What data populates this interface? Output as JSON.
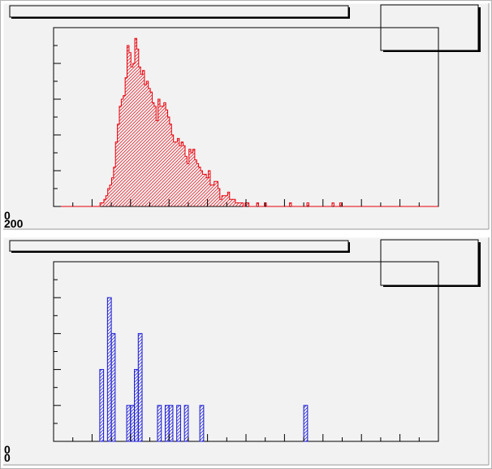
{
  "colors": {
    "pad_background": "#f2f2f2",
    "frame": "#000000",
    "hist1": "#e8000b",
    "hist2": "#1717d6",
    "outer_border": "#b4b4b4"
  },
  "pads": [
    {
      "title": "",
      "stats_box_text": "",
      "y_axis_labels": [
        "0",
        "200"
      ]
    },
    {
      "title": "",
      "stats_box_text": "",
      "y_axis_labels": [
        "0"
      ]
    }
  ],
  "chart_data": [
    {
      "type": "bar",
      "style": "histogram-step-filled-hatched",
      "title": "",
      "xlabel": "",
      "ylabel": "",
      "x_range": [
        0,
        100
      ],
      "ylim": [
        0,
        50
      ],
      "grid": false,
      "values": [
        0,
        0,
        0,
        0,
        0,
        0,
        0,
        0,
        0,
        0,
        0,
        0,
        0,
        0,
        0,
        0,
        0,
        0,
        0,
        0,
        0,
        0,
        0,
        0,
        1,
        1,
        2,
        3,
        5,
        6,
        8,
        11,
        18,
        23,
        28,
        30,
        31,
        36,
        45,
        43,
        39,
        40,
        47,
        44,
        39,
        37,
        38,
        34,
        35,
        33,
        32,
        29,
        28,
        24,
        30,
        28,
        28,
        29,
        27,
        25,
        23,
        20,
        18,
        18,
        19,
        17,
        18,
        17,
        14,
        12,
        16,
        15,
        16,
        13,
        12,
        11,
        10,
        9,
        9,
        8,
        10,
        6,
        6,
        7,
        7,
        5,
        2,
        3,
        3,
        3,
        4,
        2,
        2,
        2,
        1,
        1,
        1,
        1,
        0,
        1,
        1,
        0,
        0,
        0,
        0,
        1,
        0,
        0,
        0,
        1,
        0,
        0,
        0,
        0,
        0,
        0,
        0,
        0,
        0,
        0,
        0,
        0,
        1,
        0,
        0,
        0,
        0,
        0,
        0,
        0,
        0,
        1,
        0,
        0,
        0,
        0,
        0,
        0,
        0,
        0,
        0,
        0,
        0,
        0,
        1,
        0,
        0,
        0,
        1,
        0,
        0,
        0,
        0,
        0,
        0,
        0,
        0,
        0,
        0,
        0,
        0,
        0,
        0,
        0,
        0,
        0,
        0,
        0,
        0,
        0,
        0,
        0,
        0,
        0,
        0,
        0,
        0,
        0,
        0,
        0,
        0,
        0,
        0,
        0,
        0,
        0,
        0,
        0,
        0,
        0,
        0,
        0,
        0,
        0,
        0,
        0,
        0,
        0,
        0
      ]
    },
    {
      "type": "bar",
      "style": "histogram-step-filled-hatched",
      "title": "",
      "xlabel": "",
      "ylabel": "",
      "x_range": [
        0,
        100
      ],
      "ylim": [
        0,
        5
      ],
      "grid": false,
      "values": [
        0,
        0,
        0,
        0,
        0,
        0,
        0,
        0,
        0,
        0,
        0,
        0,
        2,
        0,
        4,
        3,
        0,
        0,
        0,
        1,
        1,
        2,
        3,
        0,
        0,
        0,
        0,
        1,
        0,
        1,
        1,
        0,
        1,
        0,
        1,
        0,
        0,
        0,
        1,
        0,
        0,
        0,
        0,
        0,
        0,
        0,
        0,
        0,
        0,
        0,
        0,
        0,
        0,
        0,
        0,
        0,
        0,
        0,
        0,
        0,
        0,
        0,
        0,
        0,
        0,
        1,
        0,
        0,
        0,
        0,
        0,
        0,
        0,
        0,
        0,
        0,
        0,
        0,
        0,
        0,
        0,
        0,
        0,
        0,
        0,
        0,
        0,
        0,
        0,
        0,
        0,
        0,
        0,
        0,
        0,
        0,
        0,
        0,
        0,
        0
      ]
    }
  ]
}
